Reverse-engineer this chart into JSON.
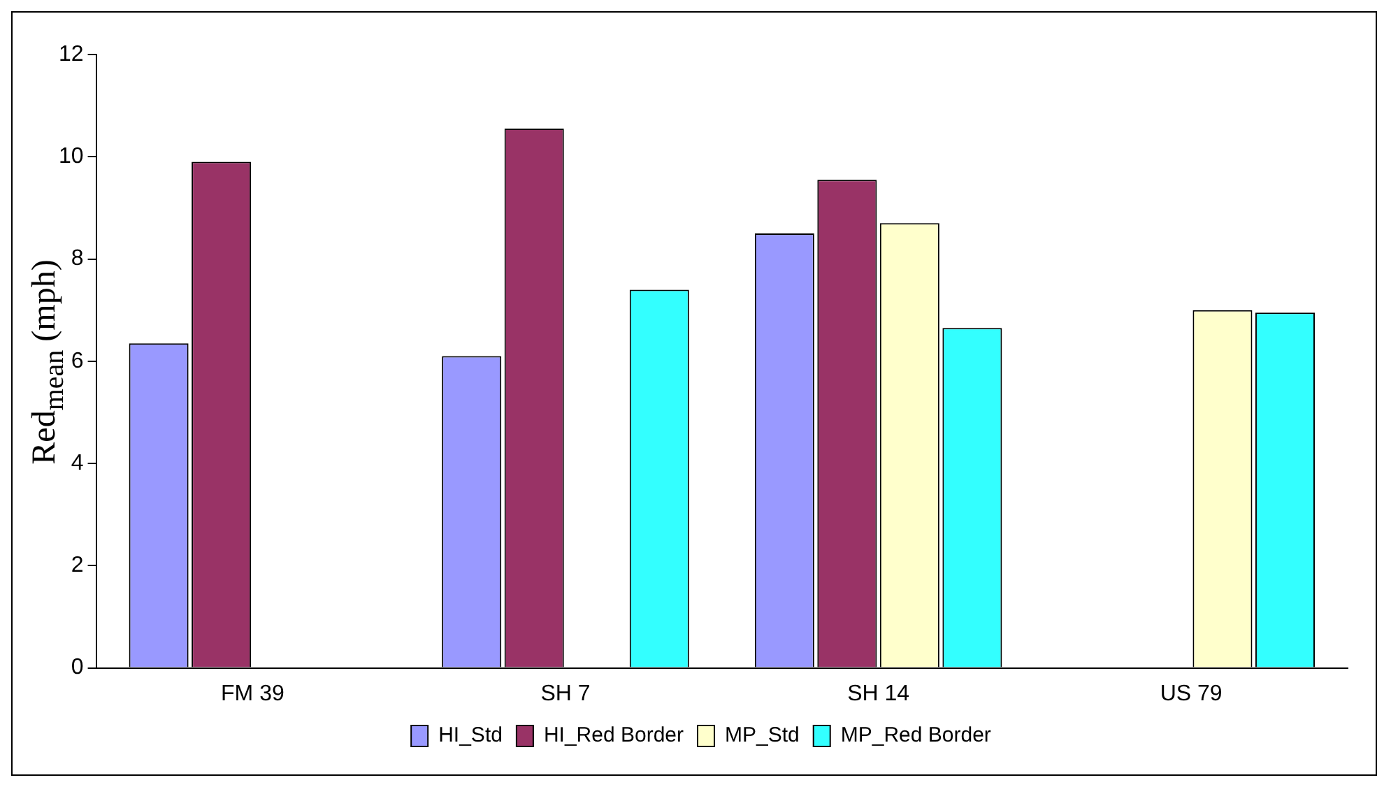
{
  "chart_data": {
    "type": "bar",
    "ylabel": "Red$_{mean}$ (mph)",
    "categories": [
      "FM 39",
      "SH 7",
      "SH 14",
      "US 79"
    ],
    "series": [
      {
        "name": "HI_Std",
        "color": "#9999ff",
        "values": [
          6.35,
          6.1,
          8.5,
          null
        ]
      },
      {
        "name": "HI_Red Border",
        "color": "#993366",
        "values": [
          9.9,
          10.55,
          9.55,
          null
        ]
      },
      {
        "name": "MP_Std",
        "color": "#ffffcc",
        "values": [
          null,
          null,
          8.7,
          7.0
        ]
      },
      {
        "name": "MP_Red Border",
        "color": "#33ffff",
        "values": [
          null,
          7.4,
          6.65,
          6.95
        ]
      }
    ],
    "ylim": [
      0,
      12
    ],
    "yticks": [
      0,
      2,
      4,
      6,
      8,
      10,
      12
    ],
    "grid": false,
    "legend": "bottom"
  }
}
